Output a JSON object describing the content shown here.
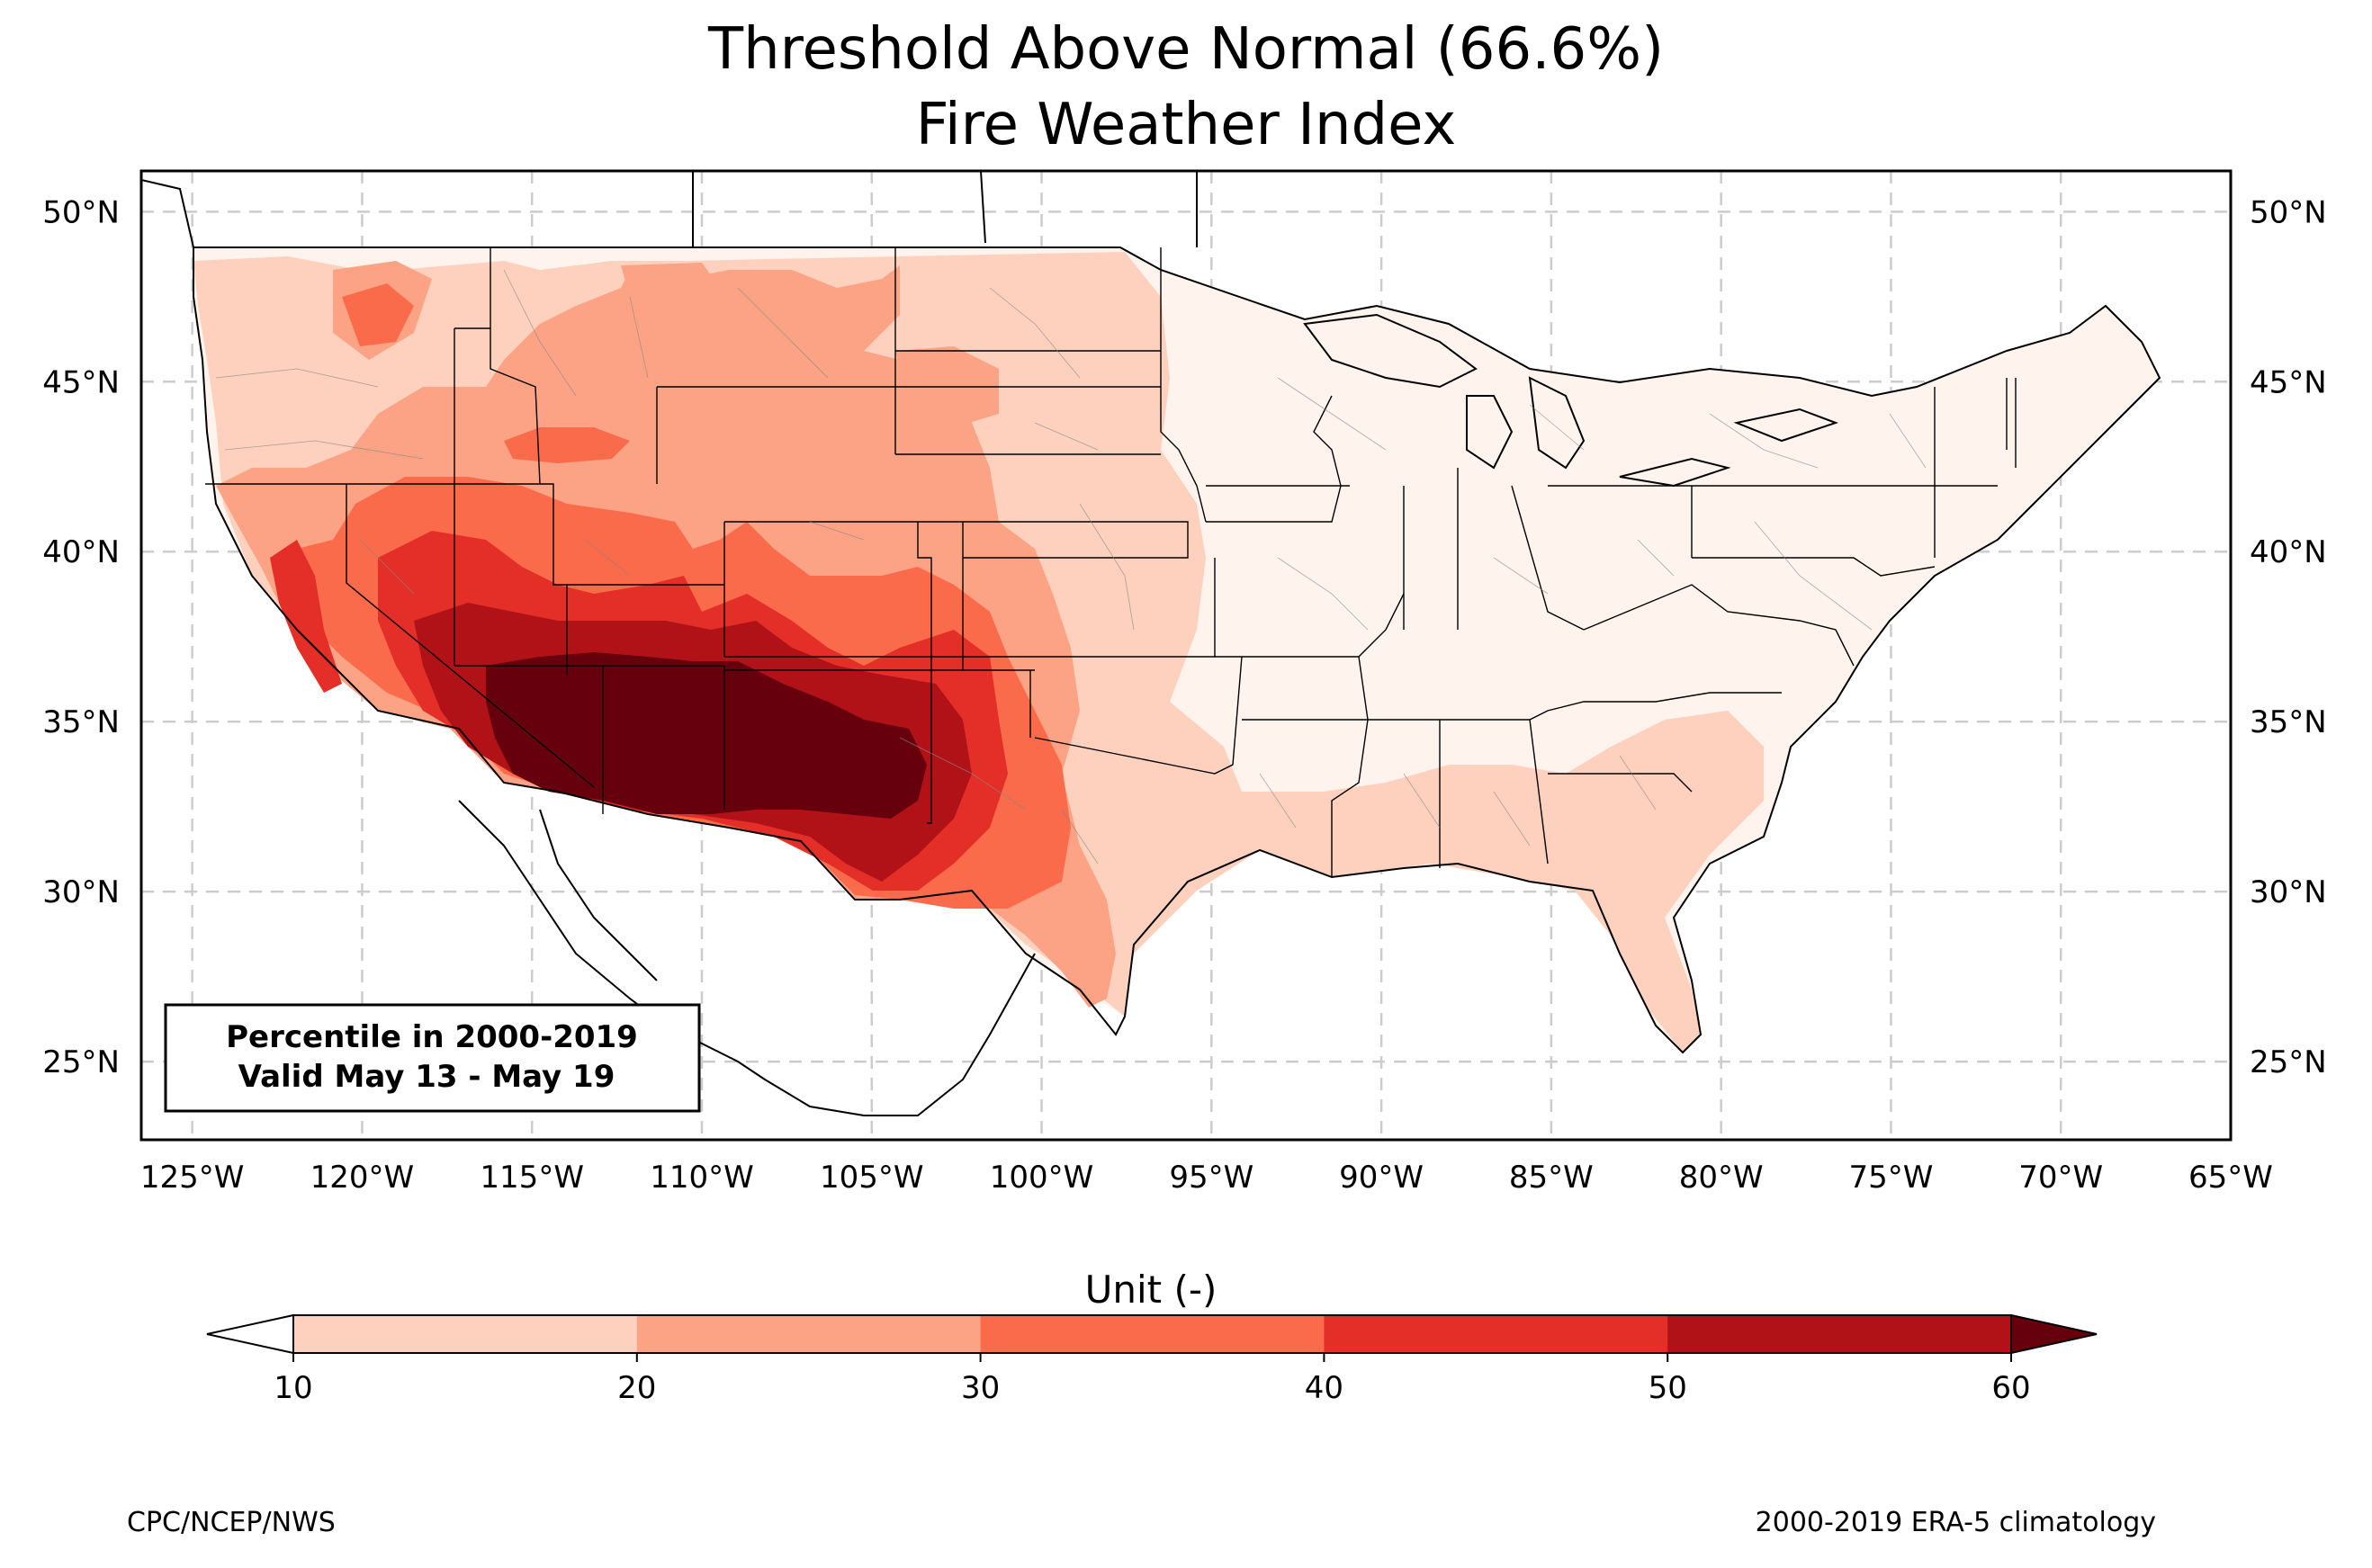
{
  "title": {
    "line1": "Threshold Above Normal (66.6%)",
    "line2": "Fire Weather Index"
  },
  "info_box": {
    "line1": "Percentile in 2000-2019",
    "line2": "Valid May 13 - May 19"
  },
  "axes": {
    "lon_ticks": [
      "125°W",
      "120°W",
      "115°W",
      "110°W",
      "105°W",
      "100°W",
      "95°W",
      "90°W",
      "85°W",
      "80°W",
      "75°W",
      "70°W",
      "65°W"
    ],
    "lat_ticks": [
      "50°N",
      "45°N",
      "40°N",
      "35°N",
      "30°N",
      "25°N"
    ],
    "lon_range": [
      -126.5,
      -65
    ],
    "lat_range": [
      22.7,
      51.2
    ],
    "gridlines": true
  },
  "colorbar": {
    "label": "Unit (-)",
    "ticks": [
      "10",
      "20",
      "30",
      "40",
      "50",
      "60"
    ],
    "colors": [
      "#fdd1bd",
      "#fca285",
      "#f96b4a",
      "#e32f27",
      "#b11218"
    ],
    "under_color": "#ffffff",
    "over_color": "#67000d"
  },
  "footer": {
    "left": "CPC/NCEP/NWS",
    "right": "2000-2019 ERA-5 climatology"
  }
}
